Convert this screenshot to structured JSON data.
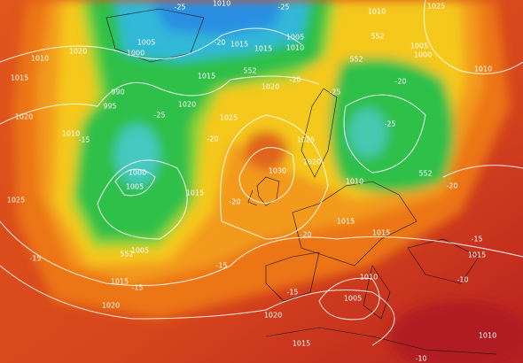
{
  "isobar_labels": [
    1010,
    1015,
    1015,
    1005,
    1010,
    1005,
    1000,
    1020,
    1010,
    1015,
    990,
    995,
    1020,
    1010,
    1020,
    1025,
    1020,
    1025,
    1030,
    1020,
    1000,
    1005,
    1015,
    1010,
    1025,
    1005,
    1015,
    1020,
    1015,
    1015,
    1015,
    1010,
    1005,
    1020,
    1015,
    1010,
    1010,
    1025,
    1005,
    1000,
    1010,
    1015
  ],
  "temperature_labels": [
    -25,
    -25,
    -20,
    -25,
    -20,
    -25,
    -15,
    -20,
    -20,
    -25,
    -20,
    -15,
    -15,
    -15,
    -20,
    -20,
    -15,
    -10,
    -15,
    -10
  ],
  "height_labels": [
    552,
    552,
    552,
    552,
    552
  ]
}
